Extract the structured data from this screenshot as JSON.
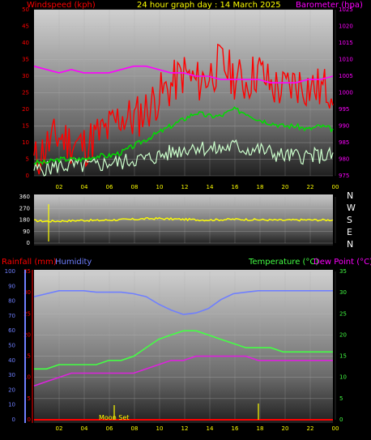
{
  "colors": {
    "red": "#ff0000",
    "magenta": "#ff00ff",
    "green": "#00dd00",
    "lightgreen": "#ccffcc",
    "yellow": "#ffff00",
    "blue": "#6f7fff",
    "bright_green": "#44ff44",
    "dewpoint_magenta": "#dd22dd"
  },
  "chart_data": [
    {
      "type": "line",
      "title": "24 hour graph day : 14 March 2025",
      "ylabel_left": "Windspeed (kph)",
      "ylabel_right": "Barometer (hpa)",
      "x_ticks": [
        "02",
        "04",
        "06",
        "08",
        "10",
        "12",
        "14",
        "16",
        "18",
        "20",
        "22",
        "00"
      ],
      "ylim_left": [
        0,
        50
      ],
      "y_ticks_left": [
        "0",
        "5",
        "10",
        "15",
        "20",
        "25",
        "30",
        "35",
        "40",
        "45",
        "50"
      ],
      "ylim_right": [
        975,
        1025
      ],
      "y_ticks_right": [
        "975",
        "980",
        "985",
        "990",
        "995",
        "1000",
        "1005",
        "1010",
        "1015",
        "1020",
        "1025"
      ],
      "grid": true,
      "series": [
        {
          "name": "Windspeed (kph)",
          "color": "#ff0000",
          "axis": "left",
          "values": [
            4,
            9,
            12,
            10,
            9,
            12,
            14,
            18,
            17,
            20,
            24,
            27,
            31,
            28,
            30,
            34,
            30,
            28,
            32,
            27,
            26,
            28,
            27,
            26,
            27
          ]
        },
        {
          "name": "Barometer (hpa)",
          "color": "#ff00ff",
          "axis": "right",
          "values": [
            1008,
            1007,
            1006,
            1007,
            1006,
            1006,
            1006,
            1007,
            1008,
            1008,
            1007,
            1006,
            1006,
            1005,
            1005,
            1004,
            1004,
            1004,
            1004,
            1003,
            1003,
            1003,
            1004,
            1004,
            1005
          ]
        }
      ],
      "unnamed_series": [
        {
          "color": "#00dd00",
          "axis": "left",
          "values": [
            4,
            4,
            5,
            5,
            5,
            6,
            6,
            7,
            9,
            11,
            13,
            15,
            17,
            19,
            18,
            18,
            20,
            19,
            17,
            16,
            15,
            15,
            14,
            15,
            14
          ]
        },
        {
          "color": "#ccffcc",
          "axis": "left",
          "values": [
            2,
            2,
            3,
            3,
            3,
            3,
            4,
            4,
            5,
            5,
            6,
            7,
            8,
            9,
            8,
            8,
            9,
            8,
            8,
            7,
            6,
            6,
            6,
            6,
            6
          ]
        }
      ]
    },
    {
      "type": "line",
      "ylabel_right": [
        "N",
        "W",
        "S",
        "E",
        "N"
      ],
      "ylim": [
        0,
        360
      ],
      "y_ticks": [
        "0",
        "90",
        "180",
        "270",
        "360"
      ],
      "series": [
        {
          "name": "Wind direction",
          "color": "#ffff00",
          "values": [
            175,
            170,
            172,
            174,
            178,
            176,
            180,
            182,
            185,
            190,
            192,
            188,
            185,
            182,
            180,
            183,
            186,
            184,
            182,
            180,
            178,
            180,
            181,
            180,
            181
          ]
        }
      ]
    },
    {
      "type": "line",
      "legend_left": [
        "Rainfall (mm)",
        "Humidity"
      ],
      "legend_right": [
        "Temperature (°C)",
        "Dew Point (°C)"
      ],
      "ylim_humidity": [
        0,
        100
      ],
      "y_ticks_humidity": [
        "0",
        "10",
        "20",
        "30",
        "40",
        "50",
        "60",
        "70",
        "80",
        "90",
        "100"
      ],
      "ylim_rain": [
        0,
        35
      ],
      "y_ticks_rain": [
        "0",
        "5",
        "10",
        "15",
        "20",
        "25",
        "30",
        "35"
      ],
      "ylim_temp": [
        0,
        35
      ],
      "y_ticks_temp": [
        "0",
        "5",
        "10",
        "15",
        "20",
        "25",
        "30",
        "35"
      ],
      "x_ticks": [
        "02",
        "04",
        "06",
        "08",
        "10",
        "12",
        "14",
        "16",
        "18",
        "20",
        "22",
        "00"
      ],
      "annotation": "Moon Set",
      "series": [
        {
          "name": "Humidity",
          "color": "#6f7fff",
          "axis": "humidity",
          "values": [
            83,
            85,
            87,
            87,
            87,
            86,
            86,
            86,
            85,
            83,
            78,
            74,
            71,
            72,
            75,
            81,
            85,
            86,
            87,
            87,
            87,
            87,
            87,
            87,
            87
          ]
        },
        {
          "name": "Temperature (°C)",
          "color": "#44ff44",
          "axis": "temp",
          "values": [
            12,
            12,
            13,
            13,
            13,
            13,
            14,
            14,
            15,
            17,
            19,
            20,
            21,
            21,
            20,
            19,
            18,
            17,
            17,
            17,
            16,
            16,
            16,
            16,
            16
          ]
        },
        {
          "name": "Dew Point (°C)",
          "color": "#dd22dd",
          "axis": "temp",
          "values": [
            8,
            9,
            10,
            11,
            11,
            11,
            11,
            11,
            11,
            12,
            13,
            14,
            14,
            15,
            15,
            15,
            15,
            15,
            14,
            14,
            14,
            14,
            14,
            14,
            14
          ]
        },
        {
          "name": "Rainfall (mm)",
          "color": "#ff0000",
          "axis": "rain",
          "values": [
            0,
            0,
            0,
            0,
            0,
            0,
            0,
            0,
            0,
            0,
            0,
            0,
            0,
            0,
            0,
            0,
            0,
            0,
            0,
            0,
            0,
            0,
            0,
            0,
            0
          ]
        }
      ]
    }
  ]
}
